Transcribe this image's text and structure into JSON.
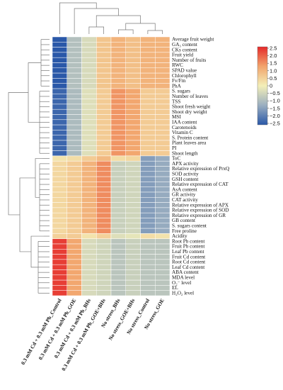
{
  "chart_data": {
    "type": "heatmap",
    "title": "",
    "columns": [
      "0.3 mM Cd + 0.3 mM Pb_Control",
      "0.3 mM Cd + 0.3 mM Pb_GOE",
      "0.3 mM Cd + 0.3 mM Pb_BHs",
      "0.3 mM Cd + 0.3 mM Pb_GOE+BHs",
      "No stress_BHs",
      "No stress_GOE+BHs",
      "No stress_Control",
      "No stress_GOE"
    ],
    "rows": [
      "Average fruit weight",
      "GA₃ content",
      "CKs content",
      "Fruit yield",
      "Number of fruits",
      "RWC",
      "SPAD value",
      "Chlorophyll",
      "Fv/Fm",
      "PhA",
      "S. sugars",
      "Number of leaves",
      "TSS",
      "Shoot fresh weight",
      "Shoot dry weight",
      "MSI",
      "IAA content",
      "Carotenoids",
      "Vitamin C",
      "S. Protein content",
      "Plant leaves area",
      "PI",
      "Shoot length",
      "ToC",
      "APX activity",
      "Relative expression of PrxQ",
      "SOD activity",
      "GSH content",
      "Relative expression of CAT",
      "AsA content",
      "GR activity",
      "CAT activity",
      "Relative expression of APX",
      "Relative expression of SOD",
      "Relative expression of GR",
      "GB content",
      "S. sugars content",
      "Free proline",
      "Acidity",
      "Root Pb content",
      "Fruit Pb content",
      "Leaf Pb content",
      "Fruit Cd content",
      "Root Cd content",
      "Leaf Cd content",
      "ABA content",
      "MDA level",
      "O₂⁻ level",
      "EL",
      "H₂O₂ level"
    ],
    "values": [
      [
        -2.5,
        -0.9,
        -0.4,
        0.7,
        1.0,
        0.8,
        1.0,
        1.0
      ],
      [
        -2.5,
        -0.9,
        -0.4,
        0.7,
        1.0,
        0.8,
        1.0,
        1.0
      ],
      [
        -2.5,
        -0.9,
        -0.4,
        0.7,
        1.0,
        0.8,
        1.0,
        1.0
      ],
      [
        -2.5,
        -0.9,
        -0.4,
        0.7,
        1.0,
        0.8,
        1.0,
        1.0
      ],
      [
        -2.5,
        -0.9,
        -0.4,
        0.7,
        1.0,
        0.8,
        1.0,
        1.0
      ],
      [
        -2.5,
        -0.9,
        -0.4,
        0.7,
        1.0,
        0.8,
        1.0,
        1.0
      ],
      [
        -2.5,
        -0.9,
        -0.4,
        0.7,
        1.0,
        0.8,
        1.0,
        1.0
      ],
      [
        -2.5,
        -0.9,
        -0.4,
        0.7,
        1.0,
        0.8,
        1.0,
        1.0
      ],
      [
        -2.5,
        -0.9,
        -0.4,
        0.7,
        1.0,
        0.8,
        1.0,
        1.0
      ],
      [
        -2.5,
        -0.9,
        -0.4,
        0.7,
        1.0,
        0.8,
        1.0,
        1.0
      ],
      [
        -2.3,
        -1.0,
        -0.3,
        0.6,
        1.4,
        1.2,
        0.6,
        0.6
      ],
      [
        -2.3,
        -1.0,
        -0.3,
        0.6,
        1.4,
        1.2,
        0.6,
        0.6
      ],
      [
        -2.3,
        -1.0,
        -0.3,
        0.6,
        1.4,
        1.2,
        0.6,
        0.6
      ],
      [
        -2.3,
        -1.0,
        -0.3,
        0.6,
        1.4,
        1.2,
        0.6,
        0.6
      ],
      [
        -2.3,
        -1.0,
        -0.3,
        0.6,
        1.4,
        1.2,
        0.6,
        0.6
      ],
      [
        -2.3,
        -1.0,
        -0.3,
        0.6,
        1.4,
        1.2,
        0.6,
        0.6
      ],
      [
        -2.3,
        -1.0,
        -0.3,
        0.6,
        1.4,
        1.2,
        0.6,
        0.6
      ],
      [
        -2.3,
        -1.0,
        -0.3,
        0.6,
        1.4,
        1.2,
        0.6,
        0.6
      ],
      [
        -2.3,
        -1.0,
        -0.3,
        0.6,
        1.4,
        1.2,
        0.6,
        0.6
      ],
      [
        -2.3,
        -1.0,
        -0.3,
        0.6,
        1.4,
        1.2,
        0.6,
        0.6
      ],
      [
        -2.3,
        -1.0,
        -0.3,
        0.6,
        1.4,
        1.2,
        0.6,
        0.6
      ],
      [
        -2.3,
        -1.0,
        -0.3,
        0.6,
        1.4,
        1.2,
        0.6,
        0.6
      ],
      [
        -2.3,
        -1.0,
        -0.3,
        0.6,
        1.4,
        1.2,
        0.6,
        0.6
      ],
      [
        0.2,
        0.3,
        0.6,
        0.9,
        0.3,
        0.4,
        -1.5,
        -1.3
      ],
      [
        0.4,
        0.6,
        1.0,
        1.5,
        -0.6,
        -0.5,
        -1.5,
        -1.3
      ],
      [
        0.4,
        0.6,
        1.0,
        1.5,
        -0.6,
        -0.5,
        -1.5,
        -1.3
      ],
      [
        0.4,
        0.6,
        1.0,
        1.5,
        -0.6,
        -0.5,
        -1.5,
        -1.3
      ],
      [
        0.4,
        0.6,
        1.0,
        1.5,
        -0.6,
        -0.5,
        -1.5,
        -1.3
      ],
      [
        0.4,
        0.6,
        1.0,
        1.5,
        -0.6,
        -0.5,
        -1.5,
        -1.3
      ],
      [
        0.4,
        0.6,
        1.0,
        1.5,
        -0.6,
        -0.5,
        -1.5,
        -1.3
      ],
      [
        0.4,
        0.6,
        1.0,
        1.5,
        -0.6,
        -0.5,
        -1.5,
        -1.3
      ],
      [
        0.4,
        0.6,
        1.0,
        1.5,
        -0.6,
        -0.5,
        -1.5,
        -1.3
      ],
      [
        0.4,
        0.6,
        1.0,
        1.5,
        -0.6,
        -0.5,
        -1.5,
        -1.3
      ],
      [
        0.4,
        0.6,
        1.0,
        1.5,
        -0.6,
        -0.5,
        -1.5,
        -1.3
      ],
      [
        0.4,
        0.6,
        1.0,
        1.5,
        -0.6,
        -0.5,
        -1.5,
        -1.3
      ],
      [
        0.4,
        0.6,
        1.0,
        1.5,
        -0.6,
        -0.5,
        -1.5,
        -1.3
      ],
      [
        0.4,
        0.6,
        1.0,
        1.5,
        -0.6,
        -0.5,
        -1.5,
        -1.3
      ],
      [
        0.4,
        0.6,
        1.0,
        1.5,
        -0.6,
        -0.5,
        -1.5,
        -1.3
      ],
      [
        0.5,
        0.6,
        0.2,
        0.5,
        -0.3,
        -0.2,
        0.3,
        0.2
      ],
      [
        2.3,
        1.2,
        -0.4,
        -0.5,
        -0.8,
        -0.6,
        -0.8,
        -0.8
      ],
      [
        2.3,
        1.2,
        -0.4,
        -0.5,
        -0.8,
        -0.6,
        -0.8,
        -0.8
      ],
      [
        2.3,
        1.2,
        -0.4,
        -0.5,
        -0.8,
        -0.6,
        -0.8,
        -0.8
      ],
      [
        2.3,
        1.2,
        -0.4,
        -0.5,
        -0.8,
        -0.6,
        -0.8,
        -0.8
      ],
      [
        2.3,
        1.2,
        -0.4,
        -0.5,
        -0.8,
        -0.6,
        -0.8,
        -0.8
      ],
      [
        2.3,
        1.2,
        -0.4,
        -0.5,
        -0.8,
        -0.6,
        -0.8,
        -0.8
      ],
      [
        2.3,
        1.2,
        -0.4,
        -0.5,
        -0.8,
        -0.6,
        -0.8,
        -0.8
      ],
      [
        2.3,
        1.2,
        -0.4,
        -0.5,
        -0.8,
        -0.6,
        -0.8,
        -0.8
      ],
      [
        2.3,
        1.2,
        -0.4,
        -0.5,
        -0.8,
        -0.6,
        -0.8,
        -0.8
      ],
      [
        2.3,
        1.2,
        -0.4,
        -0.5,
        -0.8,
        -0.6,
        -0.8,
        -0.8
      ],
      [
        2.3,
        1.2,
        -0.4,
        -0.5,
        -0.8,
        -0.6,
        -0.8,
        -0.8
      ]
    ],
    "color_scale": {
      "min": -2.5,
      "max": 2.5,
      "ticks": [
        "2.5",
        "2.0",
        "1.5",
        "1.0",
        "0.5",
        "0",
        "−0.5",
        "−1.0",
        "−1.5",
        "−2.0",
        "−2.5"
      ],
      "stops": [
        {
          "v": -2.5,
          "c": "#2a58a8"
        },
        {
          "v": -1.25,
          "c": "#9aaec0"
        },
        {
          "v": 0,
          "c": "#f3efb8"
        },
        {
          "v": 1.25,
          "c": "#f2a46c"
        },
        {
          "v": 2.5,
          "c": "#e52a2a"
        }
      ]
    },
    "legend_position": "top-right",
    "row_dendrogram": "left",
    "column_dendrogram": "top"
  }
}
